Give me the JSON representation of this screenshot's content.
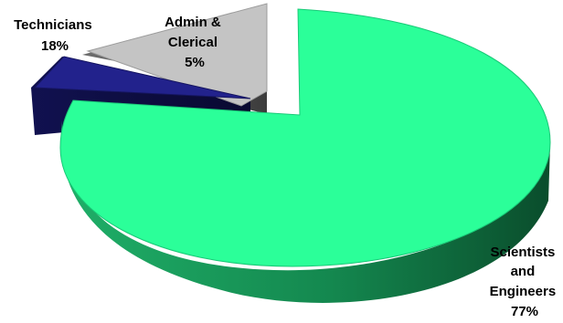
{
  "chart_data": {
    "type": "pie",
    "style": "3d-exploded",
    "slices": [
      {
        "category": "Scientists and Engineers",
        "label_lines": [
          "Scientists",
          "and",
          "Engineers"
        ],
        "pct_label": "77%",
        "value": 77,
        "color": "#2BFF99",
        "side_color": "#0F6B3F"
      },
      {
        "category": "Technicians",
        "label_lines": [
          "Technicians"
        ],
        "pct_label": "18%",
        "value": 18,
        "color": "#22228C",
        "side_color": "#0E0E45"
      },
      {
        "category": "Admin & Clerical",
        "label_lines": [
          "Admin &",
          "Clerical"
        ],
        "pct_label": "5%",
        "value": 5,
        "color": "#C4C4C4",
        "side_color": "#5A5A5A"
      }
    ]
  }
}
